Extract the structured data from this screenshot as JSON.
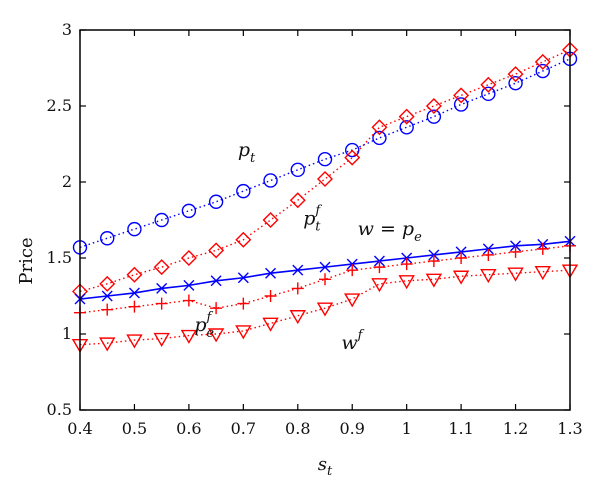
{
  "chart_data": {
    "type": "line",
    "xlabel": "s_t",
    "ylabel": "Price",
    "xlim": [
      0.4,
      1.3
    ],
    "ylim": [
      0.5,
      3.0
    ],
    "xticks": [
      "0.4",
      "0.5",
      "0.6",
      "0.7",
      "0.8",
      "0.9",
      "1",
      "1.1",
      "1.2",
      "1.3"
    ],
    "yticks": [
      "0.5",
      "1",
      "1.5",
      "2",
      "2.5",
      "3"
    ],
    "grid": false,
    "x": [
      0.4,
      0.45,
      0.5,
      0.55,
      0.6,
      0.65,
      0.7,
      0.75,
      0.8,
      0.85,
      0.9,
      0.95,
      1.0,
      1.05,
      1.1,
      1.15,
      1.2,
      1.25,
      1.3
    ],
    "series": [
      {
        "name": "p_t",
        "color": "#0000ff",
        "line": "dotted",
        "marker": "circle",
        "values": [
          1.57,
          1.63,
          1.69,
          1.75,
          1.81,
          1.87,
          1.94,
          2.01,
          2.08,
          2.15,
          2.21,
          2.29,
          2.36,
          2.43,
          2.51,
          2.58,
          2.65,
          2.73,
          2.81
        ]
      },
      {
        "name": "p_t^f",
        "color": "#ff0000",
        "line": "dotted",
        "marker": "diamond",
        "values": [
          1.28,
          1.33,
          1.39,
          1.44,
          1.5,
          1.55,
          1.62,
          1.75,
          1.88,
          2.02,
          2.16,
          2.36,
          2.43,
          2.5,
          2.57,
          2.64,
          2.71,
          2.79,
          2.87
        ]
      },
      {
        "name": "w = p_e",
        "color": "#0000ff",
        "line": "solid",
        "marker": "x",
        "values": [
          1.23,
          1.25,
          1.27,
          1.3,
          1.32,
          1.35,
          1.37,
          1.4,
          1.42,
          1.44,
          1.46,
          1.48,
          1.5,
          1.52,
          1.54,
          1.56,
          1.58,
          1.59,
          1.61
        ]
      },
      {
        "name": "p_e^f",
        "color": "#ff0000",
        "line": "dotted",
        "marker": "plus",
        "values": [
          1.14,
          1.16,
          1.18,
          1.2,
          1.22,
          1.17,
          1.2,
          1.25,
          1.3,
          1.36,
          1.42,
          1.44,
          1.46,
          1.48,
          1.5,
          1.52,
          1.54,
          1.56,
          1.58
        ]
      },
      {
        "name": "w^f",
        "color": "#ff0000",
        "line": "dotted",
        "marker": "triangle-down",
        "values": [
          0.93,
          0.94,
          0.96,
          0.97,
          0.99,
          1.0,
          1.02,
          1.07,
          1.12,
          1.17,
          1.23,
          1.33,
          1.35,
          1.36,
          1.38,
          1.39,
          1.4,
          1.41,
          1.42
        ]
      }
    ],
    "annotations": [
      {
        "series": "p_t",
        "main": "p",
        "sub": "t",
        "sup": "",
        "rest": ""
      },
      {
        "series": "p_t^f",
        "main": "p",
        "sub": "t",
        "sup": "f",
        "rest": ""
      },
      {
        "series": "w = p_e",
        "main": "w = p",
        "sub": "e",
        "sup": "",
        "rest": ""
      },
      {
        "series": "p_e^f",
        "main": "p",
        "sub": "e",
        "sup": "f",
        "rest": ""
      },
      {
        "series": "w^f",
        "main": "w",
        "sub": "",
        "sup": "f",
        "rest": ""
      }
    ]
  }
}
